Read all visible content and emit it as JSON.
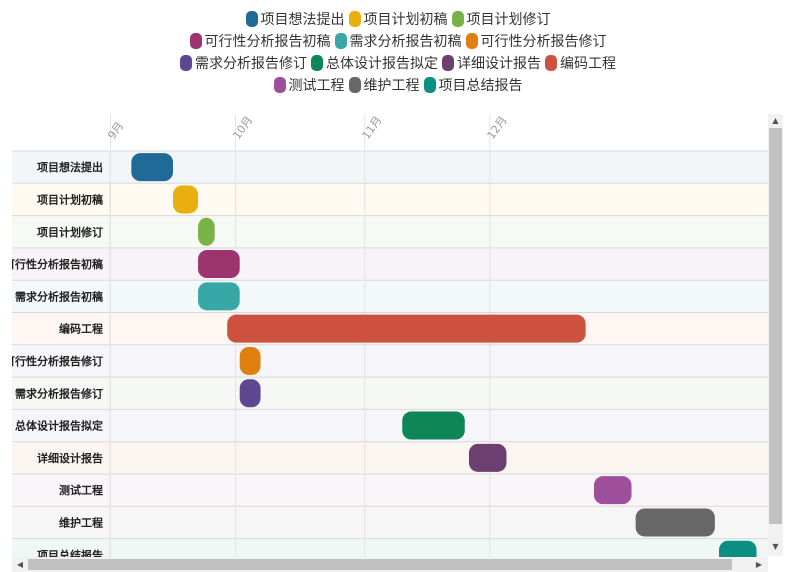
{
  "chart_data": {
    "type": "gantt",
    "date_unit": "day of year",
    "months": [
      {
        "label": "9月",
        "start": 244
      },
      {
        "label": "10月",
        "start": 274
      },
      {
        "label": "11月",
        "start": 305
      },
      {
        "label": "12月",
        "start": 335
      }
    ],
    "xlim": [
      244,
      366
    ],
    "legend_position": "top",
    "grid": true,
    "tasks": [
      {
        "name": "项目想法提出",
        "start": 249,
        "end": 259,
        "color": "#1f6a96"
      },
      {
        "name": "项目计划初稿",
        "start": 259,
        "end": 265,
        "color": "#eaaf0e"
      },
      {
        "name": "项目计划修订",
        "start": 265,
        "end": 269,
        "color": "#79b247"
      },
      {
        "name": "可行性分析报告初稿",
        "start": 265,
        "end": 275,
        "color": "#9c3470"
      },
      {
        "name": "需求分析报告初稿",
        "start": 265,
        "end": 275,
        "color": "#38a8a6"
      },
      {
        "name": "编码工程",
        "start": 272,
        "end": 358,
        "color": "#cc523f"
      },
      {
        "name": "可行性分析报告修订",
        "start": 275,
        "end": 280,
        "color": "#e07e0e"
      },
      {
        "name": "需求分析报告修订",
        "start": 275,
        "end": 280,
        "color": "#5d478f"
      },
      {
        "name": "总体设计报告拟定",
        "start": 314,
        "end": 329,
        "color": "#0f8655"
      },
      {
        "name": "详细设计报告",
        "start": 330,
        "end": 339,
        "color": "#6d3f70"
      },
      {
        "name": "测试工程",
        "start": 360,
        "end": 369,
        "color": "#9d4f9c"
      },
      {
        "name": "维护工程",
        "start": 370,
        "end": 389,
        "color": "#676767"
      },
      {
        "name": "项目总结报告",
        "start": 390,
        "end": 399,
        "color": "#0b8f82"
      }
    ]
  },
  "legend_rows": [
    [
      0,
      1,
      2
    ],
    [
      3,
      4,
      6
    ],
    [
      7,
      8,
      9,
      5
    ],
    [
      10,
      11,
      12
    ]
  ],
  "row_colors": [
    "#f2f6f9",
    "#fefaf1",
    "#f7f9f4",
    "#f8f3f6",
    "#f3f9f9",
    "#fdf6f3",
    "#f6f5f9",
    "#f6f8f6",
    "#f6f5f9",
    "#fbf5f2",
    "#faf5f9",
    "#f6f6f6",
    "#f0f8f6"
  ],
  "scrollbars": {
    "up_arrow": "▲",
    "down_arrow": "▼",
    "left_arrow": "◀",
    "right_arrow": "▶"
  }
}
